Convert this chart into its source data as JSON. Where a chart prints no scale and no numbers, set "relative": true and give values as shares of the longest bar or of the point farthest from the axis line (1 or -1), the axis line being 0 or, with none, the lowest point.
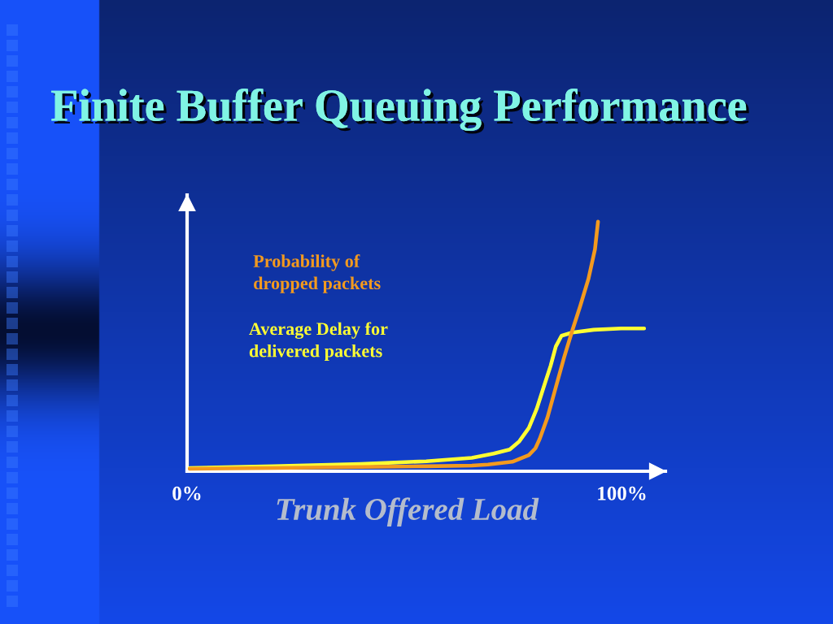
{
  "chart_data": {
    "type": "line",
    "title": "Finite Buffer Queuing Performance",
    "xlabel": "Trunk Offered Load",
    "relative": true,
    "xlim": [
      0,
      110
    ],
    "xticks": [
      {
        "value": 0,
        "label": "0%"
      },
      {
        "value": 100,
        "label": "100%"
      }
    ],
    "line_style": "solid",
    "series": [
      {
        "name": "Probability of\ndropped packets",
        "color": "#f39a1e",
        "x": [
          0.6,
          20,
          40,
          55,
          65.5,
          69.2,
          74.8,
          78.6,
          80.1,
          81.1,
          82.9,
          84.8,
          86.7,
          88.6,
          90.4,
          92.3,
          93.8,
          94.5
        ],
        "values": [
          0.01,
          0.013,
          0.017,
          0.02,
          0.023,
          0.027,
          0.038,
          0.065,
          0.092,
          0.13,
          0.217,
          0.337,
          0.456,
          0.565,
          0.662,
          0.771,
          0.89,
          1.0
        ]
      },
      {
        "name": "Average Delay for\ndelivered packets",
        "color": "#ffff33",
        "x": [
          0.6,
          20,
          40,
          55,
          65.5,
          70.5,
          74.2,
          76.4,
          78.6,
          80.4,
          82,
          83.6,
          84.8,
          86.1,
          88.6,
          93.5,
          99.8,
          105.1
        ],
        "values": [
          0.013,
          0.02,
          0.029,
          0.04,
          0.054,
          0.071,
          0.087,
          0.12,
          0.174,
          0.25,
          0.337,
          0.423,
          0.5,
          0.543,
          0.556,
          0.567,
          0.572,
          0.572
        ]
      }
    ]
  }
}
